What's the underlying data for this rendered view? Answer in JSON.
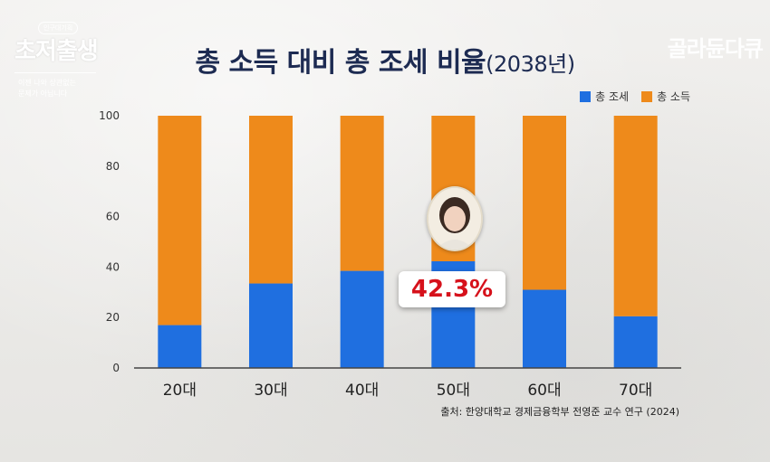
{
  "title": {
    "main": "총 소득 대비 총 조세 비율",
    "year": "(2038년)"
  },
  "brand_left": {
    "pill": "인구대기획",
    "name": "초저출생",
    "sub1": "이젠 나와 상관없는",
    "sub2": "문제가 아닙니다"
  },
  "brand_right": "골라듄다큐",
  "legend": [
    {
      "label": "총 조세",
      "color": "#1f6fe0"
    },
    {
      "label": "총 소득",
      "color": "#ee8a1b"
    }
  ],
  "callout": {
    "text": "42.3%",
    "color": "#d6111b"
  },
  "source": "출처: 한양대학교 경제금융학부 전영준 교수 연구 (2024)",
  "chart_data": {
    "type": "bar",
    "stacked": true,
    "categories": [
      "20대",
      "30대",
      "40대",
      "50대",
      "60대",
      "70대"
    ],
    "series": [
      {
        "name": "총 조세",
        "color": "#1f6fe0",
        "values": [
          17,
          33.5,
          38.5,
          42.3,
          31,
          20.5
        ]
      },
      {
        "name": "총 소득",
        "color": "#ee8a1b",
        "values": [
          83,
          66.5,
          61.5,
          57.7,
          69,
          79.5
        ]
      }
    ],
    "ylim": [
      0,
      100
    ],
    "yticks": [
      "0",
      "20",
      "40",
      "60",
      "80",
      "100"
    ],
    "grid": false,
    "legend_position": "top-right"
  }
}
